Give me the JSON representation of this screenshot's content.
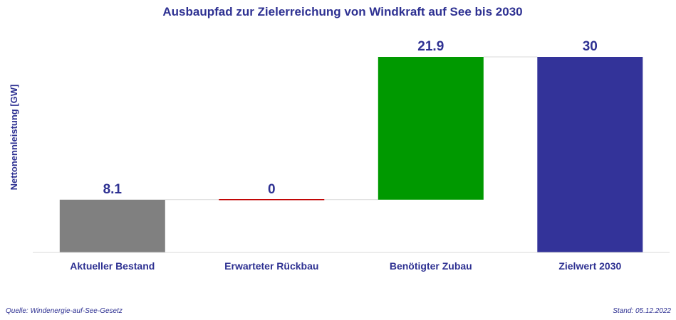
{
  "chart_data": {
    "type": "bar",
    "subtype": "waterfall",
    "title": "Ausbaupfad zur Zielerreichung von Windkraft auf See bis 2030",
    "ylabel": "Nettonennleistung [GW]",
    "xlabel": "",
    "categories": [
      "Aktueller Bestand",
      "Erwarteter Rückbau",
      "Benötigter Zubau",
      "Zielwert 2030"
    ],
    "values": [
      8.1,
      0,
      21.9,
      30
    ],
    "value_labels": [
      "8.1",
      "0",
      "21.9",
      "30"
    ],
    "bases": [
      0,
      8.1,
      8.1,
      0
    ],
    "colors": [
      "#808080",
      "#c00000",
      "#009900",
      "#333399"
    ],
    "ylim": [
      0,
      30
    ],
    "grid": false,
    "legend": "none",
    "connectors": true
  },
  "footer": {
    "source": "Quelle: Windenergie-auf-See-Gesetz",
    "date": "Stand: 05.12.2022"
  },
  "colors": {
    "text": "#2e3192",
    "axis": "#d9d9d9"
  }
}
